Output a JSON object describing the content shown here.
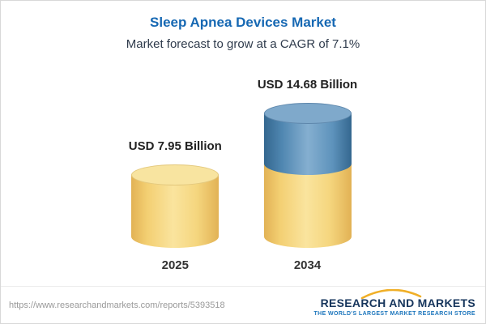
{
  "header": {
    "title": "Sleep Apnea Devices Market",
    "subtitle": "Market forecast to grow at a CAGR of 7.1%"
  },
  "chart_data": {
    "type": "bar",
    "categories": [
      "2025",
      "2034"
    ],
    "values": [
      7.95,
      14.68
    ],
    "value_labels": [
      "USD 7.95 Billion",
      "USD 14.68 Billion"
    ],
    "unit": "USD Billion",
    "title": "Sleep Apnea Devices Market",
    "subtitle": "Market forecast to grow at a CAGR of 7.1%",
    "cagr_percent": 7.1,
    "bar_style": "3d-cylinder",
    "colors": {
      "base_segment": "#F5D77C",
      "growth_segment": "#5288B5",
      "title_text": "#1668B3"
    },
    "notes": "2034 cylinder shows 2025 base value in yellow with incremental growth in blue stacked on top"
  },
  "footer": {
    "url": "https://www.researchandmarkets.com/reports/5393518",
    "brand": "RESEARCH AND MARKETS",
    "tagline": "THE WORLD'S LARGEST MARKET RESEARCH STORE"
  }
}
